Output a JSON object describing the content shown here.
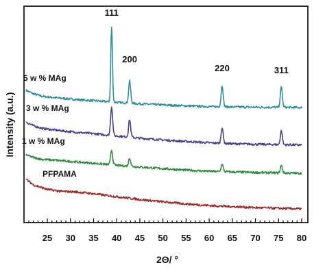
{
  "chart_data": {
    "type": "line",
    "title": "",
    "xlabel": "2Θ/ °",
    "ylabel": "Intensity (a.u.)",
    "xlim": [
      20,
      80
    ],
    "xticks": [
      25,
      30,
      35,
      40,
      45,
      50,
      55,
      60,
      65,
      70,
      75,
      80
    ],
    "grid": false,
    "legend": "none",
    "peak_labels": [
      {
        "text": "111",
        "x": 38.9
      },
      {
        "text": "200",
        "x": 42.8
      },
      {
        "text": "220",
        "x": 62.8
      },
      {
        "text": "311",
        "x": 75.6
      }
    ],
    "series": [
      {
        "name": "5 w % MAg",
        "color": "#2f8f9d",
        "baseline": [
          [
            20.4,
            0.93
          ],
          [
            22,
            0.74
          ],
          [
            24,
            0.6
          ],
          [
            28,
            0.5
          ],
          [
            32,
            0.42
          ],
          [
            36,
            0.35
          ],
          [
            40,
            0.28
          ],
          [
            45,
            0.2
          ],
          [
            50,
            0.14
          ],
          [
            55,
            0.09
          ],
          [
            60,
            0.05
          ],
          [
            65,
            0.03
          ],
          [
            70,
            0.02
          ],
          [
            75,
            0.01
          ],
          [
            80,
            0.0
          ]
        ],
        "peaks": [
          {
            "x": 38.9,
            "h": 4.05
          },
          {
            "x": 42.8,
            "h": 1.2
          },
          {
            "x": 62.8,
            "h": 1.15
          },
          {
            "x": 75.6,
            "h": 1.1
          }
        ]
      },
      {
        "name": "3 w % MAg",
        "color": "#4b3c8c",
        "baseline": [
          [
            20.4,
            1.25
          ],
          [
            22,
            1.05
          ],
          [
            24,
            0.9
          ],
          [
            28,
            0.78
          ],
          [
            32,
            0.68
          ],
          [
            36,
            0.6
          ],
          [
            40,
            0.5
          ],
          [
            45,
            0.38
          ],
          [
            50,
            0.28
          ],
          [
            55,
            0.2
          ],
          [
            60,
            0.13
          ],
          [
            65,
            0.08
          ],
          [
            70,
            0.05
          ],
          [
            75,
            0.03
          ],
          [
            80,
            0.01
          ]
        ],
        "peaks": [
          {
            "x": 38.9,
            "h": 1.55
          },
          {
            "x": 42.8,
            "h": 0.95
          },
          {
            "x": 62.8,
            "h": 0.85
          },
          {
            "x": 75.6,
            "h": 0.75
          }
        ]
      },
      {
        "name": "1 w % MAg",
        "color": "#2e8b3e",
        "baseline": [
          [
            20.4,
            1.0
          ],
          [
            22,
            0.85
          ],
          [
            24,
            0.75
          ],
          [
            28,
            0.68
          ],
          [
            32,
            0.6
          ],
          [
            36,
            0.52
          ],
          [
            40,
            0.43
          ],
          [
            45,
            0.34
          ],
          [
            50,
            0.25
          ],
          [
            55,
            0.17
          ],
          [
            60,
            0.11
          ],
          [
            65,
            0.07
          ],
          [
            70,
            0.04
          ],
          [
            75,
            0.02
          ],
          [
            80,
            0.0
          ]
        ],
        "peaks": [
          {
            "x": 38.9,
            "h": 0.8
          },
          {
            "x": 42.8,
            "h": 0.45
          },
          {
            "x": 62.8,
            "h": 0.4
          },
          {
            "x": 75.6,
            "h": 0.4
          }
        ]
      },
      {
        "name": "PFPAMA",
        "color": "#9b2a2a",
        "baseline": [
          [
            20.4,
            1.6
          ],
          [
            22,
            1.3
          ],
          [
            25,
            1.05
          ],
          [
            28,
            0.95
          ],
          [
            31,
            0.92
          ],
          [
            34,
            0.85
          ],
          [
            38,
            0.72
          ],
          [
            42,
            0.6
          ],
          [
            46,
            0.48
          ],
          [
            50,
            0.38
          ],
          [
            55,
            0.27
          ],
          [
            60,
            0.18
          ],
          [
            65,
            0.12
          ],
          [
            70,
            0.07
          ],
          [
            75,
            0.03
          ],
          [
            80,
            0.0
          ]
        ],
        "peaks": []
      }
    ]
  }
}
